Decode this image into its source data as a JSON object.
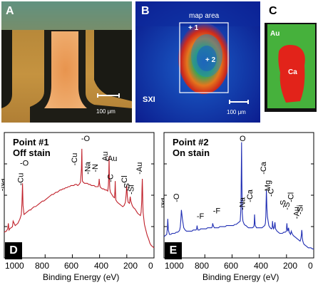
{
  "panel_a": {
    "label": "A",
    "scale_text": "100 μm"
  },
  "panel_b": {
    "label": "B",
    "map_label": "map area",
    "point1": "+ 1",
    "point2": "+ 2",
    "sxi": "SXI",
    "scale_text": "100 μm"
  },
  "panel_c": {
    "label": "C",
    "au": "Au",
    "ca": "Ca"
  },
  "chart_data": [
    {
      "type": "line",
      "panel_label": "D",
      "title_lines": [
        "Point #1",
        "Off stain"
      ],
      "xlabel": "Binding Energy (eV)",
      "x_ticks": [
        "1000",
        "800",
        "600",
        "400",
        "200",
        "0"
      ],
      "xlim": [
        1100,
        0
      ],
      "color": "#c0202a",
      "x": [
        1100,
        1085,
        1075,
        1070,
        1065,
        1060,
        1050,
        1040,
        1035,
        1020,
        1010,
        1000,
        985,
        975,
        970,
        966,
        962,
        955,
        945,
        935,
        925,
        915,
        905,
        900,
        890,
        880,
        870,
        860,
        850,
        840,
        830,
        820,
        810,
        800,
        790,
        780,
        770,
        760,
        750,
        740,
        730,
        720,
        710,
        700,
        690,
        680,
        670,
        660,
        650,
        640,
        630,
        620,
        610,
        600,
        590,
        580,
        570,
        560,
        550,
        540,
        533,
        530,
        528,
        526,
        520,
        510,
        500,
        490,
        480,
        470,
        460,
        450,
        440,
        430,
        420,
        410,
        405,
        403,
        400,
        396,
        390,
        380,
        370,
        360,
        350,
        340,
        335,
        332,
        330,
        328,
        325,
        320,
        310,
        300,
        290,
        287,
        285,
        283,
        280,
        270,
        260,
        250,
        240,
        230,
        220,
        210,
        205,
        200,
        196,
        190,
        180,
        175,
        170,
        165,
        160,
        150,
        140,
        130,
        120,
        110,
        100,
        95,
        90,
        88,
        86,
        84,
        82,
        80,
        75,
        70,
        60,
        50,
        40,
        30,
        20,
        10,
        0
      ],
      "y": [
        18,
        19,
        21,
        26,
        20,
        21,
        22,
        23,
        28,
        24,
        25,
        26,
        30,
        34,
        44,
        62,
        42,
        34,
        35,
        36,
        37,
        38,
        38,
        39,
        40,
        41,
        41,
        42,
        43,
        44,
        45,
        46,
        46,
        47,
        48,
        49,
        50,
        51,
        52,
        52,
        53,
        54,
        54,
        55,
        56,
        56,
        57,
        57,
        58,
        58,
        59,
        59,
        60,
        60,
        60,
        61,
        61,
        60,
        61,
        63,
        75,
        93,
        74,
        64,
        63,
        62,
        62,
        62,
        61,
        61,
        60,
        60,
        60,
        59,
        59,
        59,
        62,
        66,
        62,
        59,
        58,
        57,
        57,
        56,
        56,
        55,
        60,
        70,
        86,
        68,
        57,
        54,
        52,
        50,
        49,
        55,
        64,
        54,
        47,
        45,
        44,
        43,
        42,
        41,
        42,
        45,
        52,
        60,
        50,
        45,
        44,
        50,
        46,
        44,
        42,
        40,
        39,
        37,
        35,
        34,
        33,
        36,
        46,
        58,
        66,
        55,
        44,
        36,
        30,
        25,
        20,
        15,
        12,
        8,
        6,
        5,
        4
      ]
    },
    {
      "type": "line",
      "panel_label": "E",
      "title_lines": [
        "Point #2",
        "On stain"
      ],
      "xlabel": "Binding Energy (eV)",
      "x_ticks": [
        "1000",
        "800",
        "600",
        "400",
        "200",
        "0"
      ],
      "xlim": [
        1100,
        0
      ],
      "color": "#1f2db3",
      "x": [
        1100,
        1090,
        1080,
        1075,
        1072,
        1068,
        1060,
        1050,
        1040,
        1030,
        1020,
        1010,
        1000,
        990,
        985,
        980,
        976,
        972,
        965,
        955,
        945,
        935,
        925,
        915,
        905,
        895,
        885,
        875,
        865,
        860,
        857,
        855,
        850,
        840,
        830,
        820,
        810,
        800,
        790,
        780,
        770,
        760,
        750,
        745,
        742,
        738,
        730,
        720,
        710,
        700,
        690,
        680,
        670,
        660,
        650,
        640,
        630,
        620,
        610,
        600,
        590,
        580,
        570,
        560,
        550,
        540,
        535,
        532,
        530,
        528,
        525,
        520,
        510,
        500,
        495,
        498,
        490,
        480,
        470,
        460,
        450,
        440,
        437,
        435,
        432,
        430,
        425,
        420,
        410,
        400,
        390,
        380,
        370,
        360,
        355,
        352,
        350,
        348,
        346,
        344,
        340,
        330,
        320,
        310,
        305,
        303,
        300,
        295,
        290,
        285,
        280,
        270,
        260,
        250,
        240,
        230,
        220,
        210,
        200,
        199,
        197,
        195,
        190,
        185,
        180,
        170,
        165,
        160,
        150,
        140,
        130,
        120,
        110,
        100,
        95,
        90,
        88,
        86,
        84,
        80,
        75,
        70,
        60,
        50,
        40,
        30,
        20,
        10,
        0
      ],
      "y": [
        14,
        15,
        16,
        22,
        30,
        20,
        16,
        16,
        17,
        17,
        17,
        18,
        18,
        19,
        20,
        23,
        30,
        38,
        30,
        22,
        20,
        19,
        19,
        19,
        19,
        19,
        20,
        20,
        20,
        21,
        24,
        22,
        20,
        20,
        21,
        21,
        21,
        21,
        21,
        22,
        22,
        22,
        22,
        23,
        26,
        24,
        22,
        22,
        22,
        22,
        23,
        23,
        23,
        23,
        23,
        24,
        24,
        24,
        24,
        24,
        24,
        25,
        25,
        26,
        27,
        28,
        40,
        72,
        99,
        65,
        35,
        28,
        25,
        24,
        24,
        24,
        23,
        22,
        22,
        22,
        22,
        23,
        26,
        34,
        28,
        24,
        23,
        22,
        22,
        22,
        22,
        22,
        23,
        24,
        26,
        32,
        44,
        56,
        50,
        40,
        32,
        24,
        22,
        21,
        22,
        28,
        24,
        21,
        22,
        27,
        21,
        19,
        18,
        17,
        17,
        17,
        18,
        18,
        19,
        23,
        26,
        22,
        19,
        22,
        18,
        16,
        19,
        17,
        15,
        14,
        13,
        12,
        11,
        10,
        12,
        16,
        20,
        18,
        13,
        10,
        8,
        7,
        6,
        5,
        4,
        4,
        4,
        3,
        3
      ],
      "peak_labels": [
        "Na",
        "O",
        "F",
        "F",
        "O",
        "Na",
        "Ca",
        "Ca",
        "Mg",
        "C",
        "S",
        "S",
        "Cl",
        "Au",
        "Si"
      ]
    }
  ],
  "panel_d_peak_labels": [
    "Na",
    "O",
    "Cu",
    "Cu",
    "O",
    "Na",
    "N",
    "Au",
    "Au",
    "C",
    "Cl",
    "S",
    "Si",
    "Au"
  ]
}
